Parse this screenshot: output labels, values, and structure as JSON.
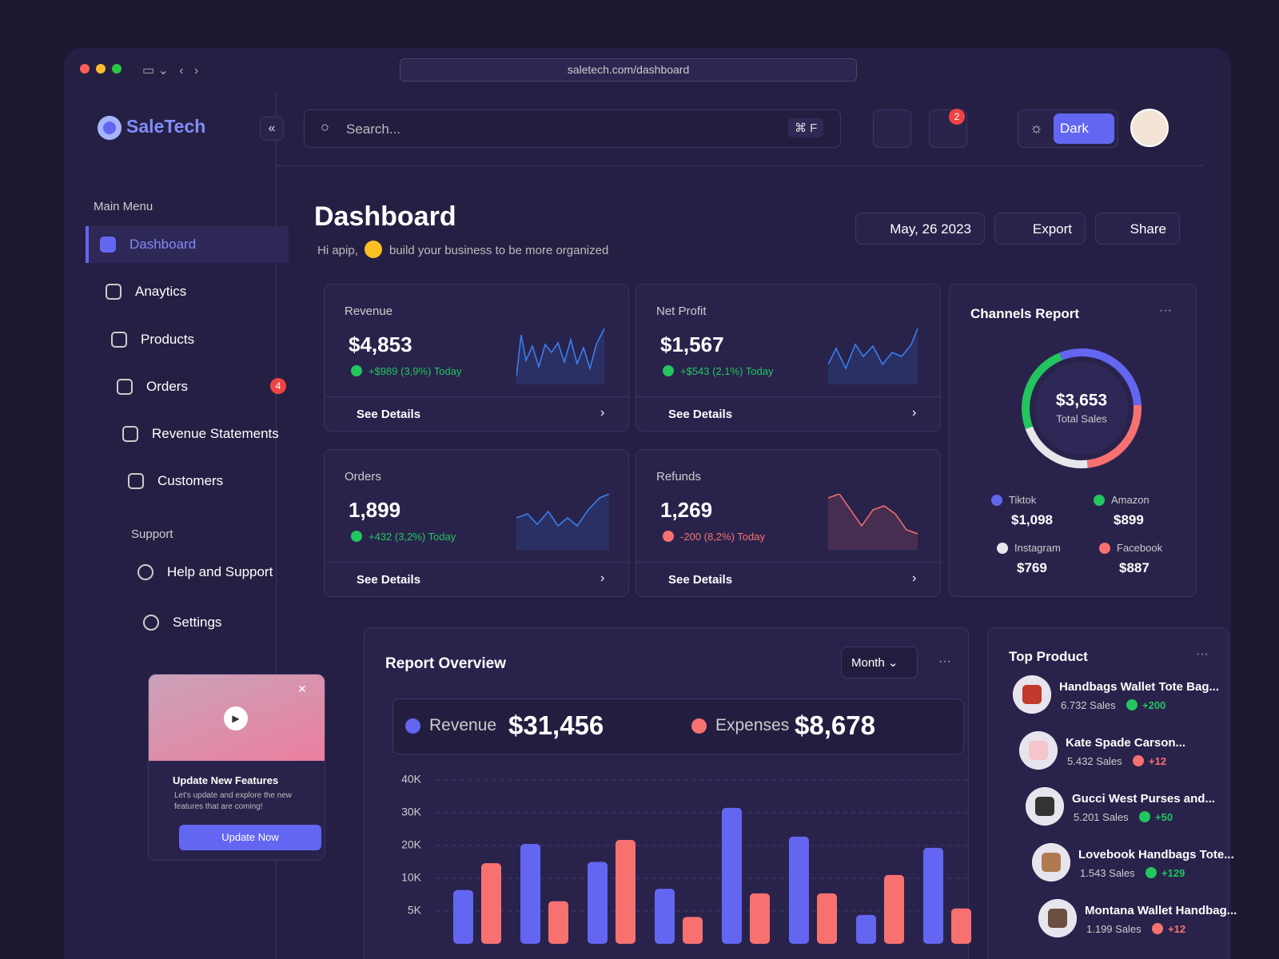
{
  "browser": {
    "url": "saletech.com/dashboard"
  },
  "sidebar": {
    "brand": "SaleTech",
    "main_menu_label": "Main Menu",
    "main_menu": [
      {
        "label": "Dashboard"
      },
      {
        "label": "Anaytics"
      },
      {
        "label": "Products"
      },
      {
        "label": "Orders",
        "badge": "4"
      },
      {
        "label": "Revenue Statements"
      },
      {
        "label": "Customers"
      }
    ],
    "support_label": "Support",
    "support": [
      {
        "label": "Help and Support"
      },
      {
        "label": "Settings"
      }
    ],
    "promo": {
      "title": "Update New Features",
      "text": "Let's update and explore the new features that are coming!",
      "button": "Update Now"
    }
  },
  "topbar": {
    "search_placeholder": "Search...",
    "shortcut": "⌘ F",
    "notifications": "2",
    "theme": "Dark"
  },
  "header": {
    "title": "Dashboard",
    "greeting": "Hi apip,",
    "subtitle": "build your business to be more organized",
    "date": "May, 26 2023",
    "export": "Export",
    "share": "Share"
  },
  "stat_cards": [
    {
      "title": "Revenue",
      "value": "$4,853",
      "change": "+$989 (3,9%) Today",
      "trend": "up",
      "link": "See Details"
    },
    {
      "title": "Net Profit",
      "value": "$1,567",
      "change": "+$543 (2,1%) Today",
      "trend": "up",
      "link": "See Details"
    },
    {
      "title": "Orders",
      "value": "1,899",
      "change": "+432 (3,2%) Today",
      "trend": "up",
      "link": "See Details"
    },
    {
      "title": "Refunds",
      "value": "1,269",
      "change": "-200 (8,2%) Today",
      "trend": "down",
      "link": "See Details"
    }
  ],
  "chart_data": [
    {
      "type": "bar",
      "title": "Report Overview",
      "period": "Month",
      "series": [
        {
          "name": "Revenue",
          "color": "#6366f1",
          "total": "$31,456",
          "values": [
            8200,
            20500,
            15000,
            8400,
            31500,
            22700,
            4400,
            19300
          ]
        },
        {
          "name": "Expenses",
          "color": "#f87171",
          "total": "$8,678",
          "values": [
            14600,
            6500,
            21700,
            4100,
            7700,
            7700,
            11000,
            5400
          ]
        }
      ],
      "ylim": [
        0,
        40000
      ],
      "yticks": [
        {
          "value": 40000,
          "label": "40K"
        },
        {
          "value": 30000,
          "label": "30K"
        },
        {
          "value": 20000,
          "label": "20K"
        },
        {
          "value": 10000,
          "label": "10K"
        },
        {
          "value": 5000,
          "label": "5K"
        }
      ],
      "grid": true
    },
    {
      "type": "pie",
      "title": "Channels Report",
      "center_value": "$3,653",
      "center_label": "Total Sales",
      "categories": [
        "Tiktok",
        "Facebook",
        "Instagram",
        "Amazon"
      ],
      "values": [
        1098,
        887,
        769,
        899
      ],
      "value_labels": [
        "$1,098",
        "$887",
        "$769",
        "$899"
      ],
      "colors": [
        "#6366f1",
        "#f87171",
        "#e5e7eb",
        "#22c55e"
      ]
    }
  ],
  "top_products": {
    "title": "Top Product",
    "items": [
      {
        "name": "Handbags Wallet Tote Bag...",
        "sales": "6.732 Sales",
        "change": "+200",
        "trend": "up"
      },
      {
        "name": "Kate Spade Carson...",
        "sales": "5.432 Sales",
        "change": "+12",
        "trend": "down"
      },
      {
        "name": "Gucci West Purses and...",
        "sales": "5.201 Sales",
        "change": "+50",
        "trend": "up"
      },
      {
        "name": "Lovebook Handbags Tote...",
        "sales": "1.543 Sales",
        "change": "+129",
        "trend": "up"
      },
      {
        "name": "Montana Wallet Handbag...",
        "sales": "1.199 Sales",
        "change": "+12",
        "trend": "down"
      }
    ]
  }
}
